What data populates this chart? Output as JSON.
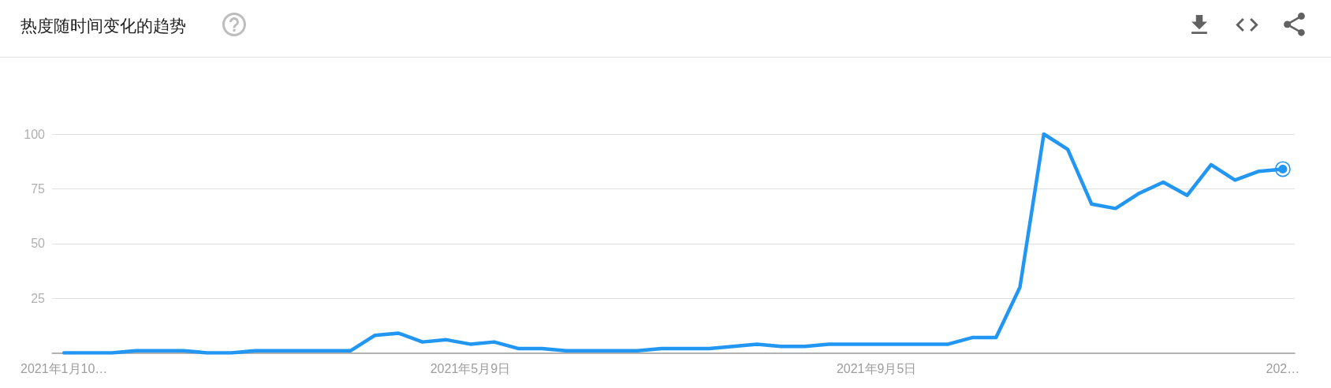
{
  "chart_data": {
    "type": "line",
    "title": "热度随时间变化的趋势",
    "categories": [
      "2021年1月10…",
      null,
      null,
      null,
      null,
      null,
      null,
      null,
      null,
      null,
      null,
      null,
      null,
      null,
      null,
      null,
      null,
      "2021年5月9日",
      null,
      null,
      null,
      null,
      null,
      null,
      null,
      null,
      null,
      null,
      null,
      null,
      null,
      null,
      null,
      null,
      "2021年9月5日",
      null,
      null,
      null,
      null,
      null,
      null,
      null,
      null,
      null,
      null,
      null,
      null,
      null,
      null,
      null,
      null,
      "202…"
    ],
    "values": [
      0,
      0,
      0,
      1,
      1,
      1,
      0,
      0,
      1,
      1,
      1,
      1,
      1,
      8,
      9,
      5,
      6,
      4,
      5,
      2,
      2,
      1,
      1,
      1,
      1,
      2,
      2,
      2,
      3,
      4,
      3,
      3,
      4,
      4,
      4,
      4,
      4,
      4,
      7,
      7,
      30,
      100,
      93,
      68,
      66,
      73,
      78,
      72,
      86,
      79,
      83,
      84
    ],
    "color": "#2196f3",
    "ylim": [
      0,
      100
    ],
    "yticks": [
      {
        "value": 0,
        "label": null
      },
      25,
      50,
      75,
      100
    ],
    "grid": "y"
  }
}
